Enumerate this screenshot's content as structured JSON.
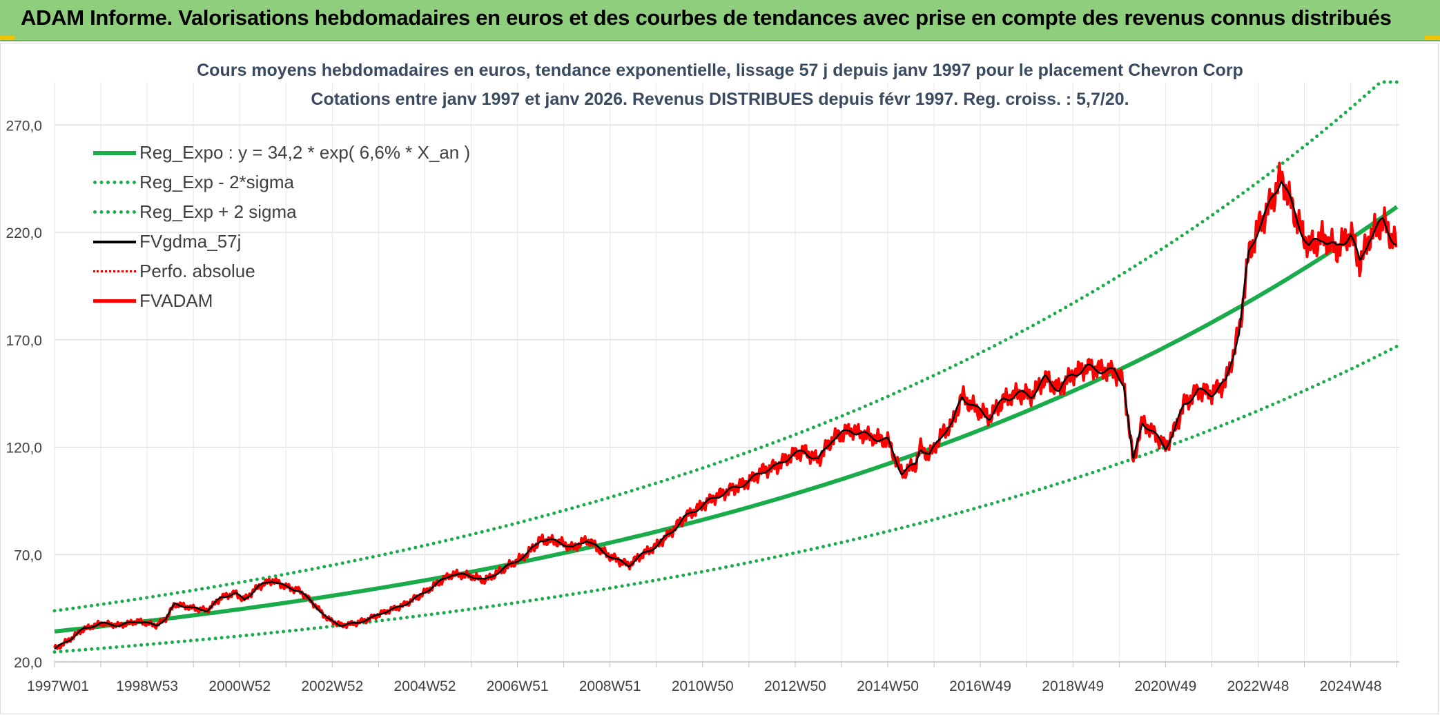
{
  "banner": {
    "title": "ADAM Informe. Valorisations hebdomadaires en euros et des courbes de tendances avec prise en compte des revenus connus distribués"
  },
  "colors": {
    "banner_bg": "#8fce7c",
    "reg_expo": "#1aab4a",
    "sigma": "#1aab4a",
    "fvgdma": "#000000",
    "perfo": "#e00000",
    "fvadam": "#ff0000",
    "grid": "#d9d9d9",
    "title": "#3a4a60"
  },
  "chart_data": {
    "type": "line",
    "title": "Cours moyens hebdomadaires en euros, tendance exponentielle, lissage 57 j depuis janv 1997 pour le placement Chevron Corp",
    "subtitle": "Cotations entre janv 1997 et janv 2026. Revenus DISTRIBUES depuis févr 1997. Reg. croiss. : 5,7/20.",
    "xlabel": "",
    "ylabel": "",
    "xlim": [
      0,
      29.05
    ],
    "ylim": [
      20,
      290
    ],
    "yticks": [
      20,
      70,
      120,
      170,
      220,
      270
    ],
    "ytick_labels": [
      "20,0",
      "70,0",
      "120,0",
      "170,0",
      "220,0",
      "270,0"
    ],
    "xtick_labels": [
      "1997W01",
      "1998W53",
      "2000W52",
      "2002W52",
      "2004W52",
      "2006W51",
      "2008W51",
      "2010W50",
      "2012W50",
      "2014W50",
      "2016W49",
      "2018W49",
      "2020W49",
      "2022W48",
      "2024W48"
    ],
    "xtick_years": [
      0,
      2,
      4,
      6,
      8,
      10,
      12,
      14,
      16,
      18,
      20,
      22,
      24,
      26,
      28
    ],
    "legend_position": "top-left",
    "series": [
      {
        "name": "Reg_Expo : y = 34,2 * exp( 6,6% *  X_an )",
        "style": "solid-thick",
        "color": "#1aab4a"
      },
      {
        "name": "Reg_Exp - 2*sigma",
        "style": "dotted",
        "color": "#1aab4a"
      },
      {
        "name": "Reg_Exp + 2 sigma",
        "style": "dotted",
        "color": "#1aab4a"
      },
      {
        "name": "FVgdma_57j",
        "style": "solid",
        "color": "#000000"
      },
      {
        "name": "Perfo. absolue",
        "style": "dotted-thin",
        "color": "#e00000"
      },
      {
        "name": "FVADAM",
        "style": "solid-thick",
        "color": "#ff0000"
      }
    ],
    "regression": {
      "a": 34.2,
      "b": 0.066,
      "minus_factor": 0.72,
      "plus_factor": 1.28
    },
    "price_points": {
      "x": [
        0,
        0.3,
        0.6,
        1.0,
        1.4,
        1.8,
        2.2,
        2.4,
        2.6,
        3.0,
        3.3,
        3.6,
        3.9,
        4.1,
        4.4,
        4.7,
        5.0,
        5.3,
        5.6,
        5.9,
        6.2,
        6.5,
        6.8,
        7.1,
        7.5,
        7.9,
        8.3,
        8.6,
        9.0,
        9.3,
        9.6,
        9.9,
        10.2,
        10.5,
        10.9,
        11.2,
        11.5,
        11.8,
        12.1,
        12.4,
        12.7,
        13.0,
        13.3,
        13.6,
        14.0,
        14.3,
        14.6,
        15.0,
        15.3,
        15.6,
        15.9,
        16.2,
        16.5,
        16.8,
        17.2,
        17.6,
        18.0,
        18.3,
        18.6,
        18.7,
        18.9,
        19.2,
        19.4,
        19.6,
        19.9,
        20.2,
        20.5,
        20.8,
        21.1,
        21.4,
        21.7,
        22.0,
        22.3,
        22.6,
        22.9,
        23.1,
        23.3,
        23.5,
        23.8,
        24.0,
        24.2,
        24.4,
        24.7,
        25.0,
        25.3,
        25.6,
        25.8,
        26.0,
        26.2,
        26.5,
        26.8,
        27.1,
        27.4,
        27.7,
        28.0,
        28.2,
        28.4,
        28.7,
        29.0
      ],
      "y": [
        26,
        30,
        35,
        38,
        37,
        39,
        37,
        40,
        47,
        45,
        44,
        50,
        52,
        49,
        55,
        58,
        55,
        53,
        47,
        40,
        37,
        38,
        40,
        43,
        46,
        51,
        57,
        61,
        60,
        58,
        62,
        66,
        70,
        77,
        76,
        73,
        77,
        72,
        68,
        65,
        70,
        74,
        80,
        87,
        93,
        97,
        100,
        104,
        109,
        111,
        116,
        118,
        114,
        124,
        128,
        125,
        123,
        108,
        112,
        120,
        116,
        127,
        131,
        144,
        138,
        134,
        142,
        145,
        144,
        152,
        147,
        154,
        157,
        156,
        155,
        150,
        113,
        132,
        125,
        120,
        128,
        140,
        146,
        145,
        150,
        175,
        210,
        222,
        230,
        246,
        228,
        213,
        218,
        212,
        220,
        205,
        218,
        225,
        214
      ]
    }
  },
  "legend": {
    "items": [
      {
        "label": "Reg_Expo : y = 34,2 * exp( 6,6% *  X_an )"
      },
      {
        "label": "Reg_Exp - 2*sigma"
      },
      {
        "label": "Reg_Exp + 2 sigma"
      },
      {
        "label": "FVgdma_57j"
      },
      {
        "label": "Perfo. absolue"
      },
      {
        "label": "FVADAM"
      }
    ]
  }
}
